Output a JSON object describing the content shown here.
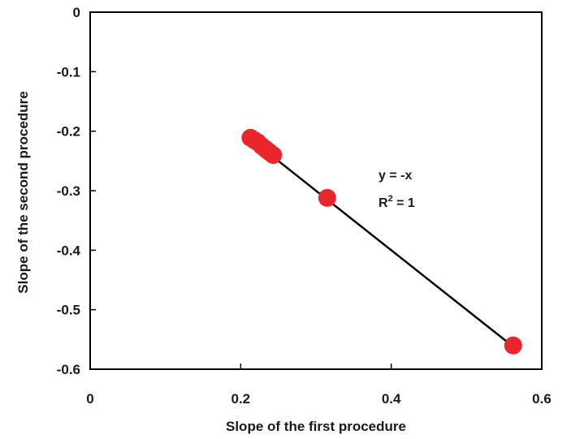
{
  "chart_data": {
    "type": "scatter",
    "xlabel": "Slope of the first procedure",
    "ylabel": "Slope of the second  procedure",
    "xlim": [
      0,
      0.6
    ],
    "ylim": [
      -0.6,
      0
    ],
    "x_ticks": [
      "0",
      "0.2",
      "0.4",
      "0.6"
    ],
    "y_ticks": [
      "0",
      "-0.1",
      "-0.2",
      "-0.3",
      "-0.4",
      "-0.5",
      "-0.6"
    ],
    "grid": false,
    "points": [
      {
        "x": 0.213,
        "y": -0.211
      },
      {
        "x": 0.218,
        "y": -0.215
      },
      {
        "x": 0.223,
        "y": -0.219
      },
      {
        "x": 0.228,
        "y": -0.225
      },
      {
        "x": 0.233,
        "y": -0.23
      },
      {
        "x": 0.238,
        "y": -0.235
      },
      {
        "x": 0.243,
        "y": -0.24
      },
      {
        "x": 0.315,
        "y": -0.312
      },
      {
        "x": 0.562,
        "y": -0.56
      }
    ],
    "trendline": {
      "x_start": 0.213,
      "x_end": 0.562,
      "slope": -1,
      "intercept": 0
    },
    "annotation": {
      "equation": "y = -x",
      "r2_prefix": "R",
      "r2_sup": "2",
      "r2_value": " = 1"
    },
    "colors": {
      "points": "#e8262b",
      "line": "#000000",
      "axis": "#000000"
    }
  }
}
